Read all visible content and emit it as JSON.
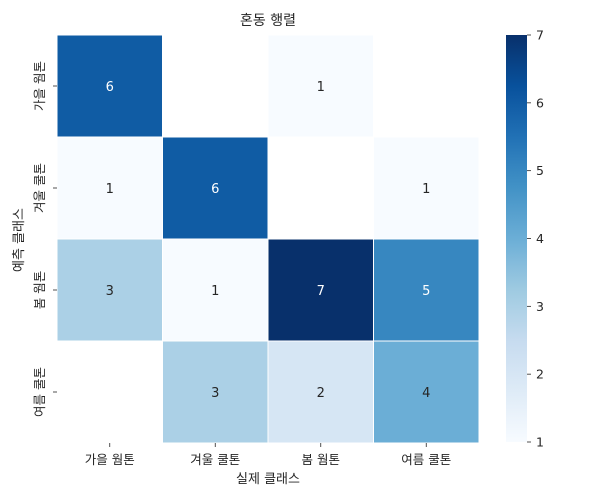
{
  "chart_data": {
    "type": "heatmap",
    "title": "혼동 행렬",
    "xlabel": "실제 클래스",
    "ylabel": "예측 클래스",
    "x_categories": [
      "가을 웜톤",
      "겨울 쿨톤",
      "봄 웜톤",
      "여름 쿨톤"
    ],
    "y_categories": [
      "가을 웜톤",
      "겨울 쿨톤",
      "봄 웜톤",
      "여름 쿨톤"
    ],
    "values": [
      [
        6,
        null,
        1,
        null
      ],
      [
        1,
        6,
        null,
        1
      ],
      [
        3,
        1,
        7,
        5
      ],
      [
        null,
        3,
        2,
        4
      ]
    ],
    "colorbar": {
      "range": [
        1,
        7
      ],
      "ticks": [
        "1",
        "2",
        "3",
        "4",
        "5",
        "6",
        "7"
      ],
      "colormap": "Blues"
    },
    "empty_cell_color": "#ffffff",
    "cell_border_color": "#ffffff"
  }
}
